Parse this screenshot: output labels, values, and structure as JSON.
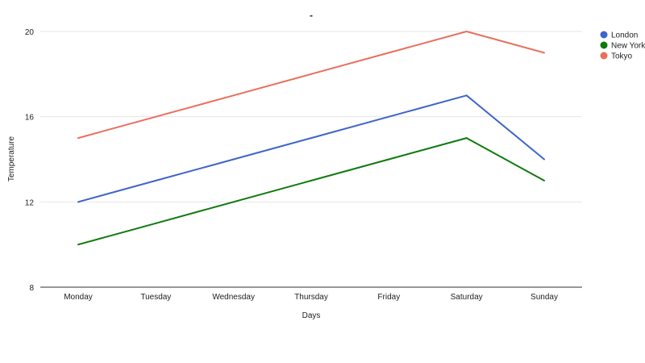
{
  "chart_data": {
    "type": "line",
    "title": "-",
    "xlabel": "Days",
    "ylabel": "Temperature",
    "categories": [
      "Monday",
      "Tuesday",
      "Wednesday",
      "Thursday",
      "Friday",
      "Saturday",
      "Sunday"
    ],
    "series": [
      {
        "name": "London",
        "color": "#3e65c9",
        "values": [
          12,
          13,
          14,
          15,
          16,
          17,
          14
        ]
      },
      {
        "name": "New York",
        "color": "#0f7a0f",
        "values": [
          10,
          11,
          12,
          13,
          14,
          15,
          13
        ]
      },
      {
        "name": "Tokyo",
        "color": "#e8705d",
        "values": [
          15,
          16,
          17,
          18,
          19,
          20,
          19
        ]
      }
    ],
    "ylim": [
      8,
      20
    ],
    "yticks": [
      8,
      12,
      16,
      20
    ],
    "grid": true,
    "legend_position": "right"
  }
}
